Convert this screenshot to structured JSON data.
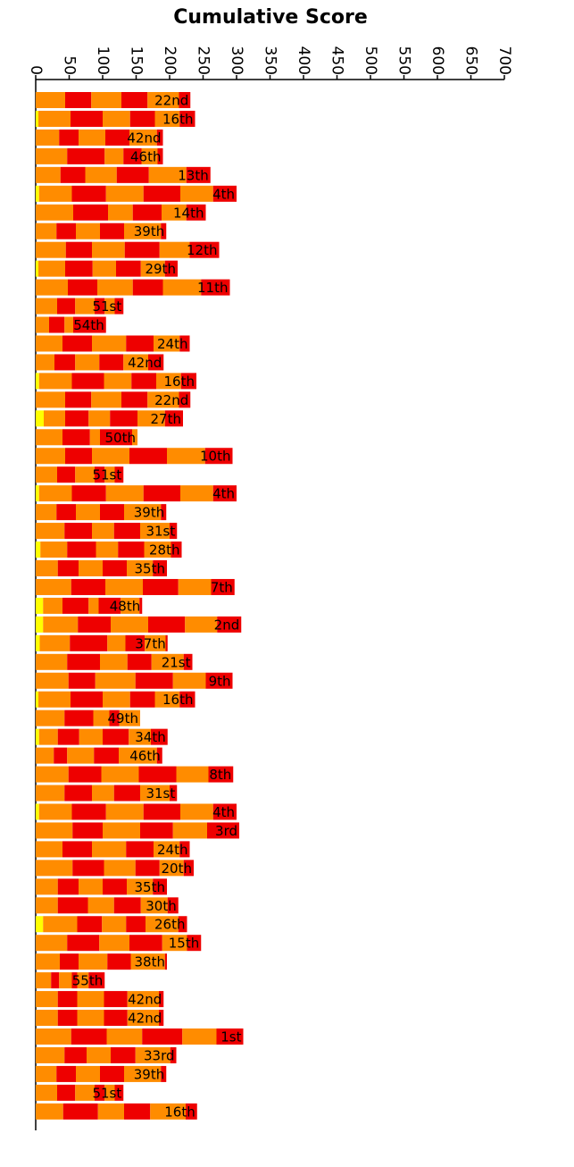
{
  "chart_data": {
    "type": "stacked-bar-horizontal",
    "title": "Cumulative Score",
    "xlim": [
      0,
      700
    ],
    "xticks": [
      0,
      50,
      100,
      150,
      200,
      250,
      300,
      350,
      400,
      450,
      500,
      550,
      600,
      650,
      700
    ],
    "labels": [
      "22nd",
      "16th",
      "42nd",
      "46th",
      "13th",
      "4th",
      "14th",
      "39th",
      "12th",
      "29th",
      "11th",
      "51st",
      "54th",
      "24th",
      "42nd",
      "16th",
      "22nd",
      "27th",
      "50th",
      "10th",
      "51st",
      "4th",
      "39th",
      "31st",
      "28th",
      "35th",
      "7th",
      "48th",
      "2nd",
      "37th",
      "21st",
      "9th",
      "16th",
      "49th",
      "34th",
      "46th",
      "8th",
      "31st",
      "4th",
      "3rd",
      "24th",
      "20th",
      "35th",
      "30th",
      "26th",
      "15th",
      "38th",
      "55th",
      "42nd",
      "42nd",
      "1st",
      "33rd",
      "39th",
      "51st",
      "16th"
    ],
    "series": [
      {
        "color": "#ffff00",
        "values": [
          0,
          4,
          0,
          0,
          0,
          5,
          0,
          0,
          0,
          4,
          0,
          0,
          0,
          0,
          0,
          5,
          0,
          12,
          0,
          0,
          0,
          5,
          0,
          0,
          7,
          0,
          0,
          11,
          11,
          6,
          0,
          0,
          4,
          0,
          5,
          0,
          0,
          0,
          5,
          0,
          0,
          0,
          0,
          0,
          11,
          0,
          0,
          0,
          0,
          0,
          0,
          0,
          0,
          0,
          0
        ]
      },
      {
        "color": "#ff8c00",
        "values": [
          44,
          48,
          35,
          47,
          37,
          49,
          56,
          31,
          45,
          40,
          48,
          32,
          20,
          40,
          28,
          49,
          44,
          32,
          40,
          44,
          32,
          49,
          31,
          43,
          40,
          33,
          53,
          29,
          52,
          45,
          47,
          49,
          48,
          43,
          28,
          27,
          49,
          43,
          49,
          55,
          40,
          55,
          33,
          33,
          51,
          47,
          36,
          23,
          33,
          33,
          53,
          43,
          31,
          32,
          41
        ]
      },
      {
        "color": "#ee0000",
        "values": [
          39,
          48,
          29,
          56,
          37,
          51,
          52,
          29,
          39,
          41,
          44,
          27,
          23,
          44,
          31,
          48,
          39,
          35,
          41,
          40,
          27,
          51,
          29,
          41,
          43,
          31,
          51,
          39,
          49,
          56,
          49,
          40,
          48,
          43,
          32,
          20,
          49,
          41,
          51,
          45,
          44,
          47,
          31,
          45,
          37,
          48,
          28,
          12,
          29,
          29,
          53,
          33,
          29,
          27,
          52
        ]
      },
      {
        "color": "#ff8c00",
        "values": [
          45,
          41,
          40,
          28,
          47,
          56,
          37,
          36,
          49,
          35,
          53,
          29,
          13,
          51,
          36,
          41,
          45,
          32,
          15,
          56,
          29,
          56,
          36,
          33,
          33,
          36,
          56,
          15,
          56,
          27,
          41,
          60,
          41,
          24,
          35,
          40,
          56,
          33,
          56,
          56,
          51,
          47,
          36,
          39,
          36,
          45,
          43,
          19,
          40,
          40,
          53,
          36,
          36,
          29,
          39
        ]
      },
      {
        "color": "#ee0000",
        "values": [
          39,
          37,
          36,
          27,
          48,
          55,
          43,
          36,
          52,
          37,
          45,
          15,
          49,
          41,
          36,
          37,
          39,
          41,
          48,
          56,
          15,
          55,
          36,
          39,
          39,
          36,
          53,
          33,
          55,
          29,
          36,
          56,
          37,
          15,
          39,
          37,
          56,
          39,
          55,
          49,
          41,
          36,
          36,
          40,
          29,
          49,
          35,
          8,
          35,
          35,
          60,
          37,
          36,
          15,
          39
        ]
      },
      {
        "color": "#ff8c00",
        "values": [
          47,
          37,
          41,
          24,
          56,
          49,
          37,
          55,
          45,
          36,
          57,
          15,
          0,
          39,
          37,
          37,
          47,
          41,
          8,
          57,
          15,
          49,
          55,
          44,
          40,
          39,
          49,
          28,
          48,
          31,
          48,
          49,
          37,
          31,
          33,
          57,
          48,
          44,
          49,
          51,
          39,
          36,
          39,
          40,
          49,
          37,
          51,
          17,
          47,
          47,
          51,
          52,
          55,
          15,
          53
        ]
      },
      {
        "color": "#ee0000",
        "values": [
          17,
          23,
          9,
          8,
          36,
          35,
          29,
          8,
          44,
          19,
          43,
          13,
          0,
          15,
          23,
          23,
          17,
          27,
          0,
          41,
          13,
          35,
          8,
          11,
          16,
          21,
          35,
          4,
          36,
          3,
          13,
          40,
          23,
          0,
          25,
          8,
          37,
          11,
          35,
          48,
          15,
          15,
          21,
          16,
          13,
          21,
          3,
          24,
          7,
          7,
          40,
          9,
          8,
          13,
          17
        ]
      }
    ]
  }
}
